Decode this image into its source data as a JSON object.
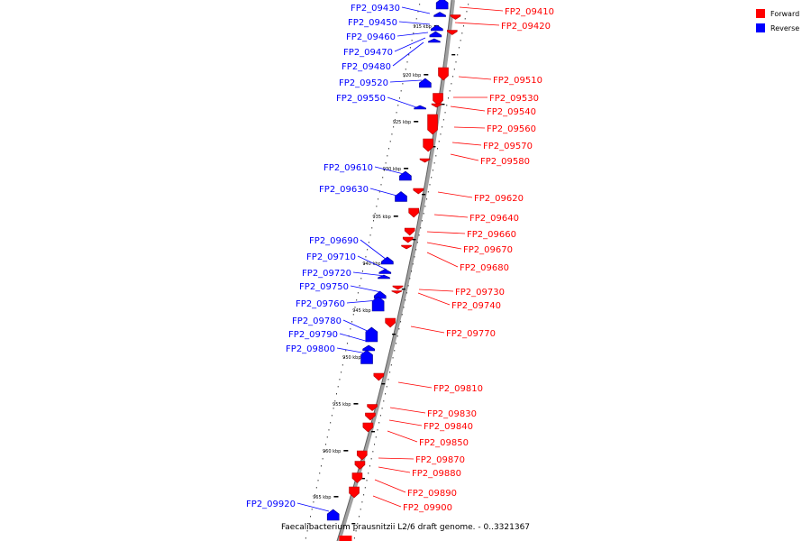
{
  "caption": "Faecalibacterium prausnitzii L2/6 draft genome. - 0..3321367",
  "legend": [
    {
      "label": "Forward",
      "color": "#ff0000"
    },
    {
      "label": "Reverse",
      "color": "#0000ff"
    }
  ],
  "colors": {
    "forward": "#ff0000",
    "reverse": "#0000ff",
    "backbone": "#808080"
  },
  "ticks": [
    "915 kbp",
    "920 kbp",
    "925 kbp",
    "930 kbp",
    "935 kbp",
    "940 kbp",
    "945 kbp",
    "950 kbp",
    "955 kbp",
    "960 kbp",
    "965 kbp"
  ],
  "forward_genes": [
    "FP2_09410",
    "FP2_09420",
    "FP2_09510",
    "FP2_09530",
    "FP2_09540",
    "FP2_09560",
    "FP2_09570",
    "FP2_09580",
    "FP2_09620",
    "FP2_09640",
    "FP2_09660",
    "FP2_09670",
    "FP2_09680",
    "FP2_09730",
    "FP2_09740",
    "FP2_09770",
    "FP2_09810",
    "FP2_09830",
    "FP2_09840",
    "FP2_09850",
    "FP2_09870",
    "FP2_09880",
    "FP2_09890",
    "FP2_09900"
  ],
  "reverse_genes": [
    "FP2_09430",
    "FP2_09450",
    "FP2_09460",
    "FP2_09470",
    "FP2_09480",
    "FP2_09520",
    "FP2_09550",
    "FP2_09610",
    "FP2_09630",
    "FP2_09690",
    "FP2_09710",
    "FP2_09720",
    "FP2_09750",
    "FP2_09760",
    "FP2_09780",
    "FP2_09790",
    "FP2_09800",
    "FP2_09920"
  ]
}
